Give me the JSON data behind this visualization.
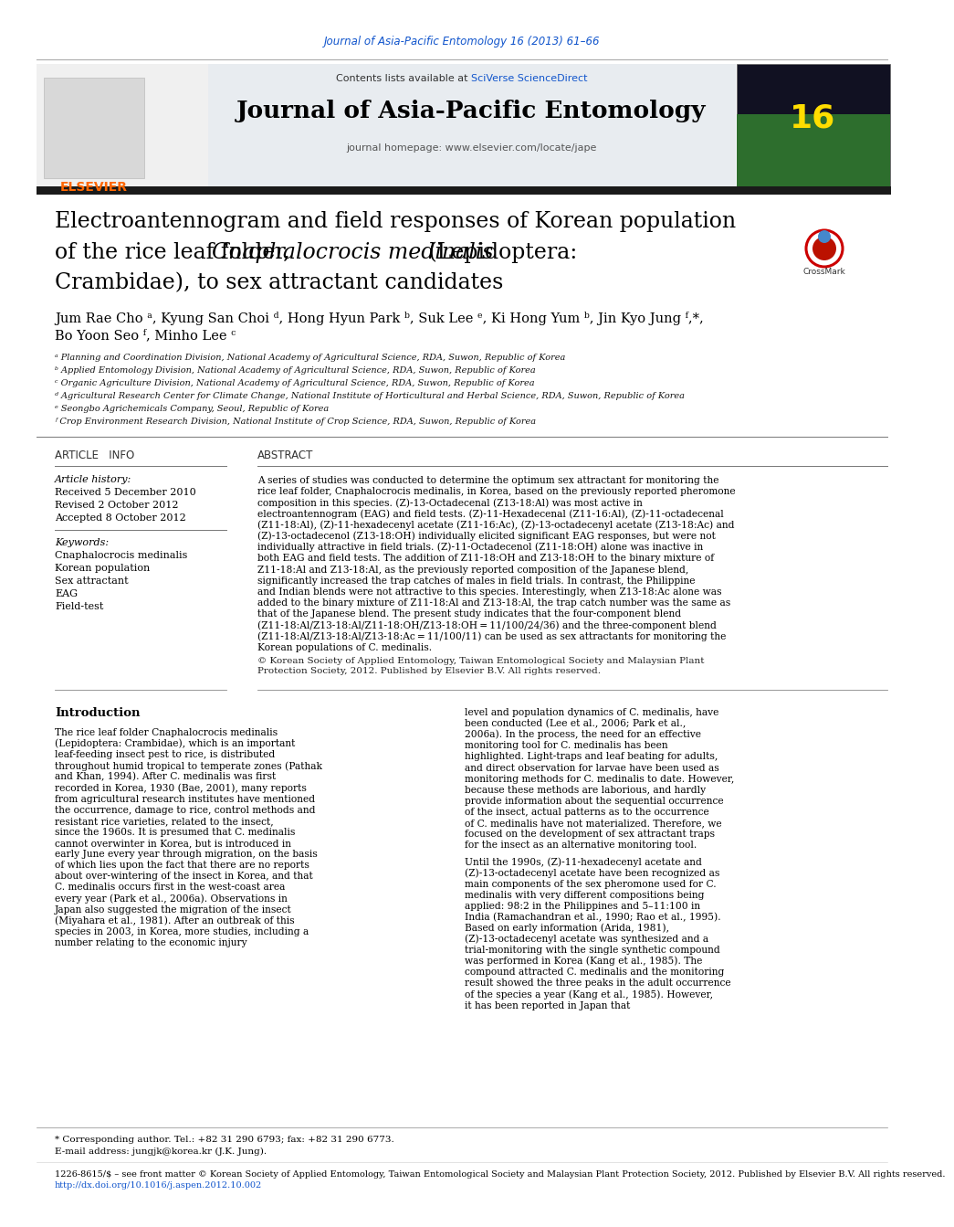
{
  "journal_ref": "Journal of Asia-Pacific Entomology 16 (2013) 61–66",
  "journal_ref_color": "#1155cc",
  "sciverse_color": "#1155cc",
  "journal_name": "Journal of Asia-Pacific Entomology",
  "homepage_text": "journal homepage: www.elsevier.com/locate/jape",
  "title_line1": "Electroantennogram and field responses of Korean population",
  "title_line2_before": "of the rice leaf folder, ",
  "title_line2_italic": "Cnaphalocrocis medinalis",
  "title_line2_after": " (Lepidoptera:",
  "title_line3": "Crambidae), to sex attractant candidates",
  "authors": "Jum Rae Cho ᵃ, Kyung San Choi ᵈ, Hong Hyun Park ᵇ, Suk Lee ᵉ, Ki Hong Yum ᵇ, Jin Kyo Jung ᶠ,*,",
  "authors2": "Bo Yoon Seo ᶠ, Minho Lee ᶜ",
  "affiliations": [
    "ᵃ Planning and Coordination Division, National Academy of Agricultural Science, RDA, Suwon, Republic of Korea",
    "ᵇ Applied Entomology Division, National Academy of Agricultural Science, RDA, Suwon, Republic of Korea",
    "ᶜ Organic Agriculture Division, National Academy of Agricultural Science, RDA, Suwon, Republic of Korea",
    "ᵈ Agricultural Research Center for Climate Change, National Institute of Horticultural and Herbal Science, RDA, Suwon, Republic of Korea",
    "ᵉ Seongbo Agrichemicals Company, Seoul, Republic of Korea",
    "ᶠ Crop Environment Research Division, National Institute of Crop Science, RDA, Suwon, Republic of Korea"
  ],
  "article_info_title": "ARTICLE   INFO",
  "abstract_title": "ABSTRACT",
  "article_history_label": "Article history:",
  "received": "Received 5 December 2010",
  "revised": "Revised 2 October 2012",
  "accepted": "Accepted 8 October 2012",
  "keywords_label": "Keywords:",
  "keywords": [
    "Cnaphalocrocis medinalis",
    "Korean population",
    "Sex attractant",
    "EAG",
    "Field-test"
  ],
  "abstract_text": "A series of studies was conducted to determine the optimum sex attractant for monitoring the rice leaf folder, Cnaphalocrocis medinalis, in Korea, based on the previously reported pheromone composition in this species. (Z)-13-Octadecenal (Z13-18:Al) was most active in electroantennogram (EAG) and field tests. (Z)-11-Hexadecenal (Z11-16:Al), (Z)-11-octadecenal (Z11-18:Al), (Z)-11-hexadecenyl acetate (Z11-16:Ac), (Z)-13-octadecenyl acetate (Z13-18:Ac) and (Z)-13-octadecenol (Z13-18:OH) individually elicited significant EAG responses, but were not individually attractive in field trials. (Z)-11-Octadecenol (Z11-18:OH) alone was inactive in both EAG and field tests. The addition of Z11-18:OH and Z13-18:OH to the binary mixture of Z11-18:Al and Z13-18:Al, as the previously reported composition of the Japanese blend, significantly increased the trap catches of males in field trials. In contrast, the Philippine and Indian blends were not attractive to this species. Interestingly, when Z13-18:Ac alone was added to the binary mixture of Z11-18:Al and Z13-18:Al, the trap catch number was the same as that of the Japanese blend. The present study indicates that the four-component blend (Z11-18:Al/Z13-18:Al/Z11-18:OH/Z13-18:OH = 11/100/24/36) and the three-component blend (Z11-18:Al/Z13-18:Al/Z13-18:Ac = 11/100/11) can be used as sex attractants for monitoring the Korean populations of C. medinalis.",
  "copyright_text": "© Korean Society of Applied Entomology, Taiwan Entomological Society and Malaysian Plant Protection Society, 2012. Published by Elsevier B.V. All rights reserved.",
  "intro_title": "Introduction",
  "intro_col1": "The rice leaf folder Cnaphalocrocis medinalis (Lepidoptera: Crambidae), which is an important leaf-feeding insect pest to rice, is distributed throughout humid tropical to temperate zones (Pathak and Khan, 1994). After C. medinalis was first recorded in Korea, 1930 (Bae, 2001), many reports from agricultural research institutes have mentioned the occurrence, damage to rice, control methods and resistant rice varieties, related to the insect, since the 1960s. It is presumed that C. medinalis cannot overwinter in Korea, but is introduced in early June every year through migration, on the basis of which lies upon the fact that there are no reports about over-wintering of the insect in Korea, and that C. medinalis occurs first in the west-coast area every year (Park et al., 2006a). Observations in Japan also suggested the migration of the insect (Miyahara et al., 1981). After an outbreak of this species in 2003, in Korea, more studies, including a number relating to the economic injury",
  "intro_col2_p1": "level and population dynamics of C. medinalis, have been conducted (Lee et al., 2006; Park et al., 2006a). In the process, the need for an effective monitoring tool for C. medinalis has been highlighted. Light-traps and leaf beating for adults, and direct observation for larvae have been used as monitoring methods for C. medinalis to date. However, because these methods are laborious, and hardly provide information about the sequential occurrence of the insect, actual patterns as to the occurrence of C. medinalis have not materialized. Therefore, we focused on the development of sex attractant traps for the insect as an alternative monitoring tool.",
  "intro_col2_p2": "Until the 1990s, (Z)-11-hexadecenyl acetate and (Z)-13-octadecenyl acetate have been recognized as main components of the sex pheromone used for C. medinalis with very different compositions being applied: 98:2 in the Philippines and 5–11:100 in India (Ramachandran et al., 1990; Rao et al., 1995). Based on early information (Arida, 1981), (Z)-13-octadecenyl acetate was synthesized and a trial-monitoring with the single synthetic compound was performed in Korea (Kang et al., 1985). The compound attracted C. medinalis and the monitoring result showed the three peaks in the adult occurrence of the species a year (Kang et al., 1985). However, it has been reported in Japan that",
  "footnote_star": "* Corresponding author. Tel.: +82 31 290 6793; fax: +82 31 290 6773.",
  "footnote_email": "E-mail address: jungjk@korea.kr (J.K. Jung).",
  "footnote_issn": "1226-8615/$ – see front matter © Korean Society of Applied Entomology, Taiwan Entomological Society and Malaysian Plant Protection Society, 2012. Published by Elsevier B.V. All rights reserved.",
  "footnote_doi": "http://dx.doi.org/10.1016/j.aspen.2012.10.002",
  "bg_color": "#ffffff",
  "header_bg": "#e8ecf0",
  "black_bar_color": "#1a1a1a",
  "link_color": "#1155cc"
}
